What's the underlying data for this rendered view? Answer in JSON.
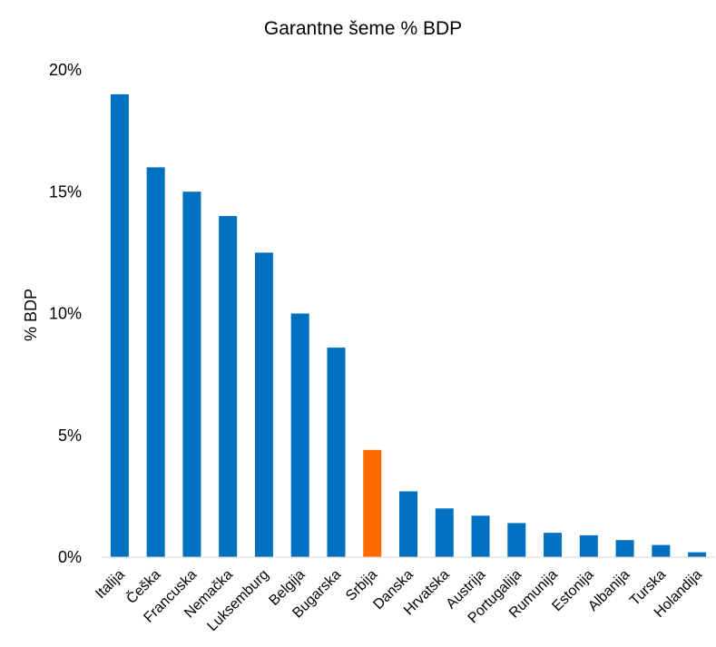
{
  "chart_data": {
    "type": "bar",
    "title": "Garantne šeme % BDP",
    "xlabel": "",
    "ylabel": "% BDP",
    "ylim": [
      0,
      20
    ],
    "yticks": [
      "0%",
      "5%",
      "10%",
      "15%",
      "20%"
    ],
    "grid": false,
    "legend": "none",
    "categories": [
      "Italija",
      "Češka",
      "Francuska",
      "Nemačka",
      "Luksemburg",
      "Belgija",
      "Bugarska",
      "Srbija",
      "Danska",
      "Hrvatska",
      "Austrija",
      "Portugalija",
      "Rumunija",
      "Estonija",
      "Albanija",
      "Turska",
      "Holandija"
    ],
    "values": [
      19.0,
      16.0,
      15.0,
      14.0,
      12.5,
      10.0,
      8.6,
      4.4,
      2.7,
      2.0,
      1.7,
      1.4,
      1.0,
      0.9,
      0.7,
      0.5,
      0.2
    ],
    "colors": {
      "default": "#0070C0",
      "highlight": "#FF6A00",
      "highlight_category": "Srbija"
    }
  }
}
